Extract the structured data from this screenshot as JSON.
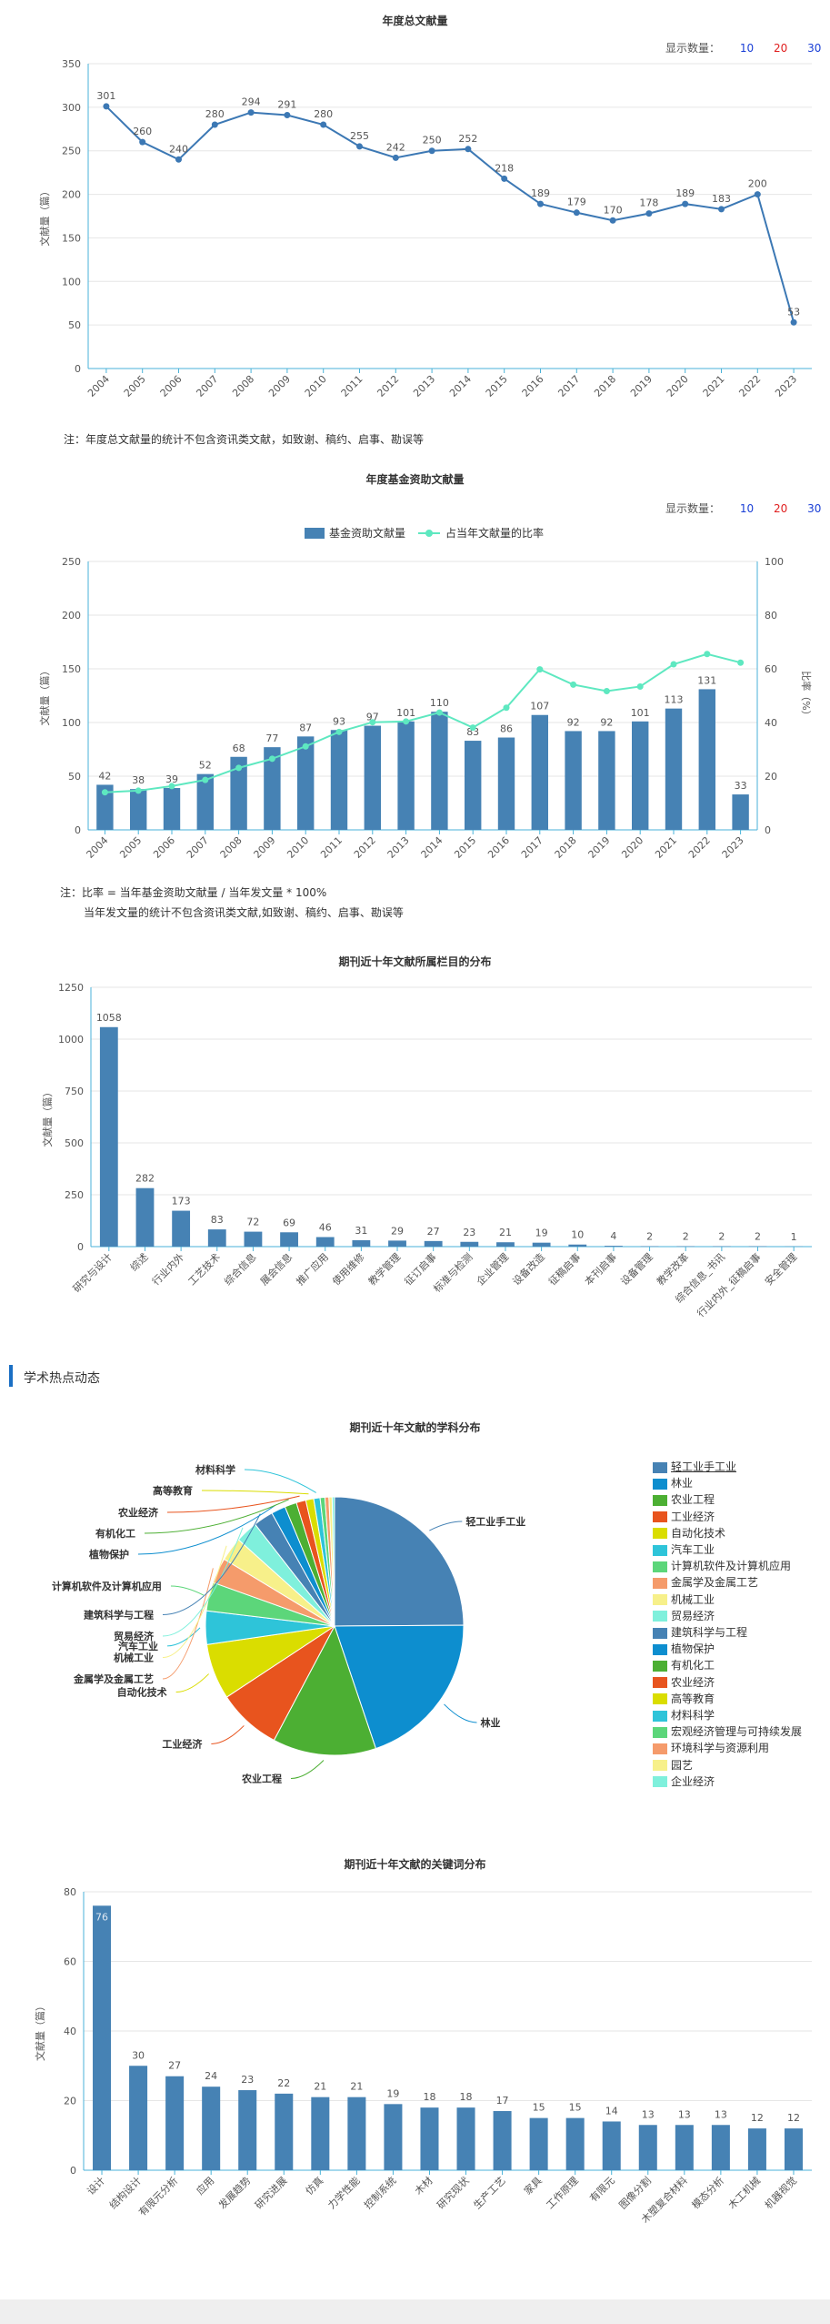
{
  "total": {
    "title": "年度总文献量",
    "show_count_label": "显示数量：",
    "counts": [
      "10",
      "20",
      "30"
    ],
    "count_colors": [
      "#1a3fd6",
      "#e02020",
      "#1a3fd6"
    ],
    "note": "注：年度总文献量的统计不包含资讯类文献，如致谢、稿约、启事、勘误等"
  },
  "fund": {
    "title": "年度基金资助文献量",
    "show_count_label": "显示数量：",
    "counts": [
      "10",
      "20",
      "30"
    ],
    "count_colors": [
      "#1a3fd6",
      "#e02020",
      "#1a3fd6"
    ],
    "note_line1": "注：比率 = 当年基金资助文献量 / 当年发文量 * 100%",
    "note_line2": "当年发文量的统计不包含资讯类文献,如致谢、稿约、启事、勘误等"
  },
  "column": {
    "title": "期刊近十年文献所属栏目的分布"
  },
  "section": {
    "label": "学术热点动态"
  },
  "subject": {
    "title": "期刊近十年文献的学科分布"
  },
  "keyword": {
    "title": "期刊近十年文献的关键词分布"
  },
  "chart_data": [
    {
      "id": "total",
      "type": "line",
      "x": [
        "2004",
        "2005",
        "2006",
        "2007",
        "2008",
        "2009",
        "2010",
        "2011",
        "2012",
        "2013",
        "2014",
        "2015",
        "2016",
        "2017",
        "2018",
        "2019",
        "2020",
        "2021",
        "2022",
        "2023"
      ],
      "values": [
        301,
        260,
        240,
        280,
        294,
        291,
        280,
        255,
        242,
        250,
        252,
        218,
        189,
        179,
        170,
        178,
        189,
        183,
        200,
        53
      ],
      "labels": [
        "301",
        "260",
        "240",
        "280",
        "294",
        "291",
        "280",
        "255",
        "242",
        "250",
        "252",
        "218",
        "189",
        "179",
        "170",
        "178",
        "189",
        "183",
        "200",
        "53"
      ],
      "ylabel": "文献量（篇）",
      "ylim": [
        0,
        350
      ],
      "yticks": [
        "0",
        "50",
        "100",
        "150",
        "200",
        "250",
        "300",
        "350"
      ],
      "color": "#3c78b4",
      "grid": true
    },
    {
      "id": "fund",
      "type": "bar",
      "x": [
        "2004",
        "2005",
        "2006",
        "2007",
        "2008",
        "2009",
        "2010",
        "2011",
        "2012",
        "2013",
        "2014",
        "2015",
        "2016",
        "2017",
        "2018",
        "2019",
        "2020",
        "2021",
        "2022",
        "2023"
      ],
      "series": [
        {
          "name": "基金资助文献量",
          "type": "bar",
          "color": "#4682b4",
          "values": [
            42,
            38,
            39,
            52,
            68,
            77,
            87,
            93,
            97,
            101,
            110,
            83,
            86,
            107,
            92,
            92,
            101,
            113,
            131,
            33
          ],
          "labels": [
            "42",
            "38",
            "39",
            "52",
            "68",
            "77",
            "87",
            "93",
            "97",
            "101",
            "110",
            "83",
            "86",
            "107",
            "92",
            "92",
            "101",
            "113",
            "131",
            "33"
          ]
        },
        {
          "name": "占当年文献量的比率",
          "type": "line",
          "color": "#5ee8c0",
          "values": [
            14,
            14.6,
            16.3,
            18.6,
            23.1,
            26.5,
            31.1,
            36.5,
            40.1,
            40.4,
            43.7,
            38.1,
            45.5,
            59.8,
            54.1,
            51.7,
            53.4,
            61.7,
            65.5,
            62.3
          ]
        }
      ],
      "ylabel": "文献量（篇）",
      "ylabel_right": "比率（%）",
      "ylim": [
        0,
        250
      ],
      "ylim_right": [
        0,
        100
      ],
      "yticks": [
        "0",
        "50",
        "100",
        "150",
        "200",
        "250"
      ],
      "yticks_right": [
        "0",
        "20",
        "40",
        "60",
        "80",
        "100"
      ],
      "legend": "top-center",
      "grid": true
    },
    {
      "id": "column",
      "type": "bar",
      "categories": [
        "研究与设计",
        "综述",
        "行业内外",
        "工艺技术",
        "综合信息",
        "展会信息",
        "推广应用",
        "使用维修",
        "教学管理",
        "征订启事",
        "标准与检测",
        "企业管理",
        "设备改造",
        "征稿启事",
        "本刊启事",
        "设备管理",
        "教学改革",
        "综合信息_书讯",
        "行业内外_征稿启事",
        "安全管理"
      ],
      "values": [
        1058,
        282,
        173,
        83,
        72,
        69,
        46,
        31,
        29,
        27,
        23,
        21,
        19,
        10,
        4,
        2,
        2,
        2,
        2,
        1
      ],
      "labels": [
        "1058",
        "282",
        "173",
        "83",
        "72",
        "69",
        "46",
        "31",
        "29",
        "27",
        "23",
        "21",
        "19",
        "10",
        "4",
        "2",
        "2",
        "2",
        "2",
        "1"
      ],
      "ylabel": "文献量（篇）",
      "ylim": [
        0,
        1250
      ],
      "yticks": [
        "0",
        "250",
        "500",
        "750",
        "1000",
        "1250"
      ],
      "color": "#4682b4",
      "grid": true
    },
    {
      "id": "subject",
      "type": "pie",
      "slices": [
        {
          "name": "轻工业手工业",
          "value": 25.0,
          "color": "#4682b4"
        },
        {
          "name": "林业",
          "value": 20.0,
          "color": "#0d8ecf"
        },
        {
          "name": "农业工程",
          "value": 13.0,
          "color": "#4caf33"
        },
        {
          "name": "工业经济",
          "value": 8.0,
          "color": "#e8541e"
        },
        {
          "name": "自动化技术",
          "value": 7.0,
          "color": "#dadd00"
        },
        {
          "name": "汽车工业",
          "value": 4.2,
          "color": "#2ec4d9"
        },
        {
          "name": "计算机软件及计算机应用",
          "value": 3.6,
          "color": "#5cd67a"
        },
        {
          "name": "金属学及金属工艺",
          "value": 3.2,
          "color": "#f59b6b"
        },
        {
          "name": "机械工业",
          "value": 3.0,
          "color": "#f7f08a"
        },
        {
          "name": "贸易经济",
          "value": 2.8,
          "color": "#7ff0dc"
        },
        {
          "name": "建筑科学与工程",
          "value": 2.5,
          "color": "#4682b4"
        },
        {
          "name": "植物保护",
          "value": 1.8,
          "color": "#0d8ecf"
        },
        {
          "name": "有机化工",
          "value": 1.5,
          "color": "#4caf33"
        },
        {
          "name": "农业经济",
          "value": 1.2,
          "color": "#e8541e"
        },
        {
          "name": "高等教育",
          "value": 1.0,
          "color": "#dadd00"
        },
        {
          "name": "材料科学",
          "value": 0.8,
          "color": "#2ec4d9"
        },
        {
          "name": "宏观经济管理与可持续发展",
          "value": 0.6,
          "color": "#5cd67a"
        },
        {
          "name": "环境科学与资源利用",
          "value": 0.5,
          "color": "#f59b6b"
        },
        {
          "name": "园艺",
          "value": 0.4,
          "color": "#f7f08a"
        },
        {
          "name": "企业经济",
          "value": 0.3,
          "color": "#7ff0dc"
        }
      ],
      "outside_labels": [
        "轻工业手工业",
        "林业",
        "农业工程",
        "工业经济",
        "自动化技术",
        "汽车工业",
        "计算机软件及计算机应用",
        "金属学及金属工艺",
        "机械工业",
        "贸易经济",
        "建筑科学与工程",
        "植物保护",
        "有机化工",
        "农业经济",
        "高等教育",
        "材料科学"
      ],
      "legend": "right"
    },
    {
      "id": "keyword",
      "type": "bar",
      "categories": [
        "设计",
        "结构设计",
        "有限元分析",
        "应用",
        "发展趋势",
        "研究进展",
        "仿真",
        "力学性能",
        "控制系统",
        "木材",
        "研究现状",
        "生产工艺",
        "家具",
        "工作原理",
        "有限元",
        "图像分割",
        "木塑复合材料",
        "模态分析",
        "木工机械",
        "机器视觉"
      ],
      "values": [
        76,
        30,
        27,
        24,
        23,
        22,
        21,
        21,
        19,
        18,
        18,
        17,
        15,
        15,
        14,
        13,
        13,
        13,
        12,
        12
      ],
      "labels": [
        "76",
        "30",
        "27",
        "24",
        "23",
        "22",
        "21",
        "21",
        "19",
        "18",
        "18",
        "17",
        "15",
        "15",
        "14",
        "13",
        "13",
        "13",
        "12",
        "12"
      ],
      "ylabel": "文献量（篇）",
      "ylim": [
        0,
        80
      ],
      "yticks": [
        "0",
        "20",
        "40",
        "60",
        "80"
      ],
      "color": "#4682b4",
      "grid": true
    }
  ]
}
